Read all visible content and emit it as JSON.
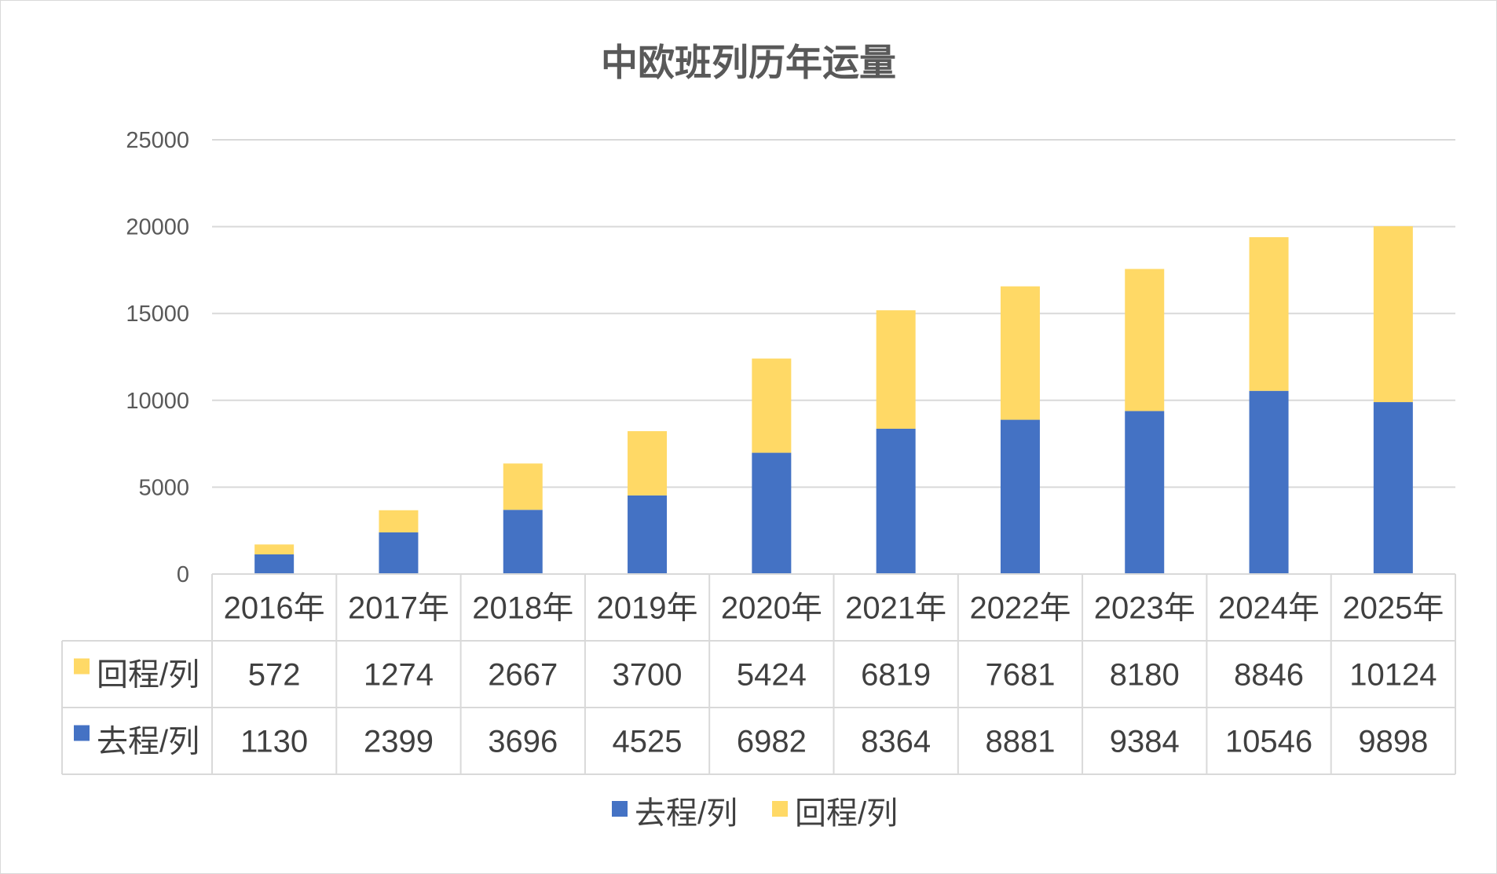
{
  "chart_data": {
    "type": "bar",
    "stacked": true,
    "title": "中欧班列历年运量",
    "categories": [
      "2016年",
      "2017年",
      "2018年",
      "2019年",
      "2020年",
      "2021年",
      "2022年",
      "2023年",
      "2024年",
      "2025年"
    ],
    "series": [
      {
        "name": "去程/列",
        "color": "#4472c4",
        "values": [
          1130,
          2399,
          3696,
          4525,
          6982,
          8364,
          8881,
          9384,
          10546,
          9898
        ]
      },
      {
        "name": "回程/列",
        "color": "#ffd966",
        "values": [
          572,
          1274,
          2667,
          3700,
          5424,
          6819,
          7681,
          8180,
          8846,
          10124
        ]
      }
    ],
    "ylim": [
      0,
      25000
    ],
    "yticks": [
      "0",
      "5000",
      "10000",
      "15000",
      "20000",
      "25000"
    ],
    "grid": true,
    "data_table": true,
    "table_row_order": [
      "回程/列",
      "去程/列"
    ],
    "legend_position": "bottom",
    "legend_order": [
      "去程/列",
      "回程/列"
    ]
  }
}
